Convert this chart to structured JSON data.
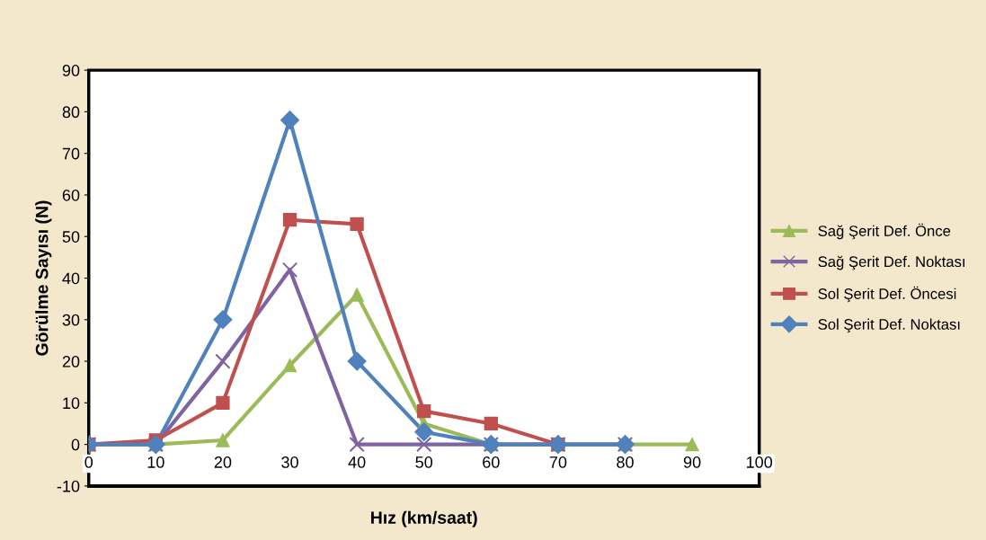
{
  "chart_data": {
    "type": "line",
    "xlabel": "Hız (km/saat)",
    "ylabel": "Görülme Sayısı (N)",
    "xlim": [
      0,
      100
    ],
    "xticks": [
      0,
      10,
      20,
      30,
      40,
      50,
      60,
      70,
      80,
      90,
      100
    ],
    "ylim": [
      -10,
      90
    ],
    "yticks": [
      -10,
      0,
      10,
      20,
      30,
      40,
      50,
      60,
      70,
      80,
      90
    ],
    "grid": false,
    "legend": "right",
    "series": [
      {
        "name": "Sağ Şerit Def. Önce",
        "color": "#9bbb59",
        "marker": "triangle",
        "x": [
          0,
          10,
          20,
          30,
          40,
          50,
          60,
          70,
          80,
          90
        ],
        "values": [
          0,
          0,
          1,
          19,
          36,
          5,
          0,
          0,
          0,
          0
        ]
      },
      {
        "name": "Sağ Şerit Def. Noktası",
        "color": "#8064a2",
        "marker": "cross",
        "x": [
          0,
          10,
          20,
          30,
          40,
          50,
          60,
          70,
          80
        ],
        "values": [
          0,
          0,
          20,
          42,
          0,
          0,
          0,
          0,
          0
        ]
      },
      {
        "name": "Sol Şerit Def. Öncesi",
        "color": "#c0504d",
        "marker": "square",
        "x": [
          0,
          10,
          20,
          30,
          40,
          50,
          60,
          70
        ],
        "values": [
          0,
          1,
          10,
          54,
          53,
          8,
          5,
          0
        ]
      },
      {
        "name": "Sol Şerit Def. Noktası",
        "color": "#4f81bd",
        "marker": "diamond",
        "x": [
          0,
          10,
          20,
          30,
          40,
          50,
          60,
          70,
          80
        ],
        "values": [
          0,
          0,
          30,
          78,
          20,
          3,
          0,
          0,
          0
        ]
      }
    ]
  }
}
